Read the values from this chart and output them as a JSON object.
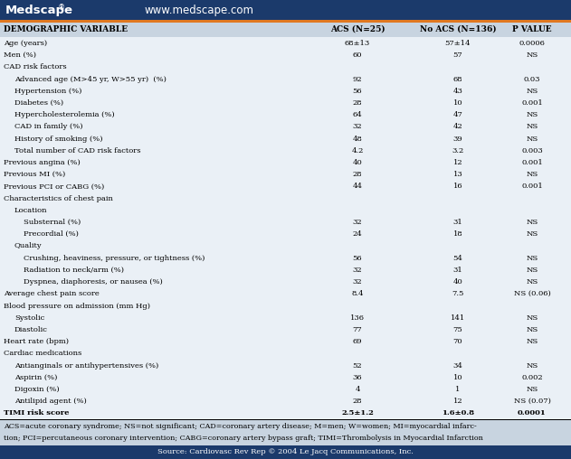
{
  "header_bg": "#1a3a6b",
  "orange_line_color": "#e07820",
  "col_header_bg": "#c8d4e0",
  "table_bg": "#eaf0f6",
  "footer_bg": "#c8d4e0",
  "source_bg": "#1a3a6b",
  "source_text": "Source: Cardiovasc Rev Rep © 2004 Le Jacq Communications, Inc.",
  "col_headers": [
    "DEMOGRAPHIC VARIABLE",
    "ACS (N=25)",
    "No ACS (N=136)",
    "P VALUE"
  ],
  "rows": [
    {
      "label": "Age (years)",
      "acs": "68±13",
      "no_acs": "57±14",
      "p": "0.0006",
      "indent": 0,
      "bold": false
    },
    {
      "label": "Men (%)",
      "acs": "60",
      "no_acs": "57",
      "p": "NS",
      "indent": 0,
      "bold": false
    },
    {
      "label": "CAD risk factors",
      "acs": "",
      "no_acs": "",
      "p": "",
      "indent": 0,
      "bold": false
    },
    {
      "label": "Advanced age (M>45 yr, W>55 yr)  (%)",
      "acs": "92",
      "no_acs": "68",
      "p": "0.03",
      "indent": 1,
      "bold": false
    },
    {
      "label": "Hypertension (%)",
      "acs": "56",
      "no_acs": "43",
      "p": "NS",
      "indent": 1,
      "bold": false
    },
    {
      "label": "Diabetes (%)",
      "acs": "28",
      "no_acs": "10",
      "p": "0.001",
      "indent": 1,
      "bold": false
    },
    {
      "label": "Hypercholesterolemia (%)",
      "acs": "64",
      "no_acs": "47",
      "p": "NS",
      "indent": 1,
      "bold": false
    },
    {
      "label": "CAD in family (%)",
      "acs": "32",
      "no_acs": "42",
      "p": "NS",
      "indent": 1,
      "bold": false
    },
    {
      "label": "History of smoking (%)",
      "acs": "48",
      "no_acs": "39",
      "p": "NS",
      "indent": 1,
      "bold": false
    },
    {
      "label": "Total number of CAD risk factors",
      "acs": "4.2",
      "no_acs": "3.2",
      "p": "0.003",
      "indent": 1,
      "bold": false
    },
    {
      "label": "Previous angina (%)",
      "acs": "40",
      "no_acs": "12",
      "p": "0.001",
      "indent": 0,
      "bold": false
    },
    {
      "label": "Previous MI (%)",
      "acs": "28",
      "no_acs": "13",
      "p": "NS",
      "indent": 0,
      "bold": false
    },
    {
      "label": "Previous PCI or CABG (%)",
      "acs": "44",
      "no_acs": "16",
      "p": "0.001",
      "indent": 0,
      "bold": false
    },
    {
      "label": "Characteristics of chest pain",
      "acs": "",
      "no_acs": "",
      "p": "",
      "indent": 0,
      "bold": false
    },
    {
      "label": "Location",
      "acs": "",
      "no_acs": "",
      "p": "",
      "indent": 1,
      "bold": false
    },
    {
      "label": "Substernal (%)",
      "acs": "32",
      "no_acs": "31",
      "p": "NS",
      "indent": 2,
      "bold": false
    },
    {
      "label": "Precordial (%)",
      "acs": "24",
      "no_acs": "18",
      "p": "NS",
      "indent": 2,
      "bold": false
    },
    {
      "label": "Quality",
      "acs": "",
      "no_acs": "",
      "p": "",
      "indent": 1,
      "bold": false
    },
    {
      "label": "Crushing, heaviness, pressure, or tightness (%)",
      "acs": "56",
      "no_acs": "54",
      "p": "NS",
      "indent": 2,
      "bold": false
    },
    {
      "label": "Radiation to neck/arm (%)",
      "acs": "32",
      "no_acs": "31",
      "p": "NS",
      "indent": 2,
      "bold": false
    },
    {
      "label": "Dyspnea, diaphoresis, or nausea (%)",
      "acs": "32",
      "no_acs": "40",
      "p": "NS",
      "indent": 2,
      "bold": false
    },
    {
      "label": "Average chest pain score",
      "acs": "8.4",
      "no_acs": "7.5",
      "p": "NS (0.06)",
      "indent": 0,
      "bold": false
    },
    {
      "label": "Blood pressure on admission (mm Hg)",
      "acs": "",
      "no_acs": "",
      "p": "",
      "indent": 0,
      "bold": false
    },
    {
      "label": "Systolic",
      "acs": "136",
      "no_acs": "141",
      "p": "NS",
      "indent": 1,
      "bold": false
    },
    {
      "label": "Diastolic",
      "acs": "77",
      "no_acs": "75",
      "p": "NS",
      "indent": 1,
      "bold": false
    },
    {
      "label": "Heart rate (bpm)",
      "acs": "69",
      "no_acs": "70",
      "p": "NS",
      "indent": 0,
      "bold": false
    },
    {
      "label": "Cardiac medications",
      "acs": "",
      "no_acs": "",
      "p": "",
      "indent": 0,
      "bold": false
    },
    {
      "label": "Antianginals or antihypertensives (%)",
      "acs": "52",
      "no_acs": "34",
      "p": "NS",
      "indent": 1,
      "bold": false
    },
    {
      "label": "Aspirin (%)",
      "acs": "36",
      "no_acs": "10",
      "p": "0.002",
      "indent": 1,
      "bold": false
    },
    {
      "label": "Digoxin (%)",
      "acs": "4",
      "no_acs": "1",
      "p": "NS",
      "indent": 1,
      "bold": false
    },
    {
      "label": "Antilipid agent (%)",
      "acs": "28",
      "no_acs": "12",
      "p": "NS (0.07)",
      "indent": 1,
      "bold": false
    },
    {
      "label": "TIMI risk score",
      "acs": "2.5±1.2",
      "no_acs": "1.6±0.8",
      "p": "0.0001",
      "indent": 0,
      "bold": true
    }
  ],
  "footnote_line1": "ACS=acute coronary syndrome; NS=not significant; CAD=coronary artery disease; M=men; W=women; MI=myocardial infarc-",
  "footnote_line2": "tion; PCI=percutaneous coronary intervention; CABG=coronary artery bypass graft; TIMI=Thrombolysis in Myocardial Infarction"
}
